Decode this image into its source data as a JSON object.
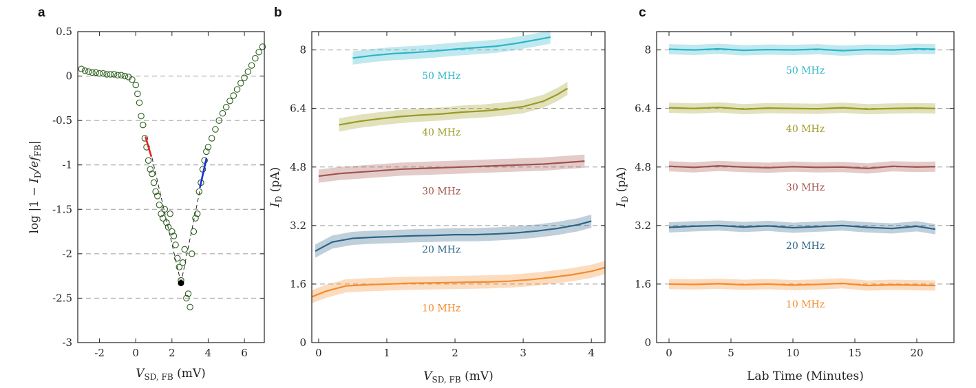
{
  "chart_data": [
    {
      "panel": "a",
      "type": "scatter",
      "xlabel": "V_SD, FB (mV)",
      "xlabel_main": "V",
      "xlabel_sub": "SD, FB",
      "xlabel_unit": " (mV)",
      "ylabel": "log |1 − I_D/e f_FB|",
      "ylabel_prefix": "log |1 − ",
      "ylabel_I": "I",
      "ylabel_Isub": "D",
      "ylabel_mid": "/e",
      "ylabel_f": "f",
      "ylabel_fsub": "FB",
      "ylabel_suffix": "|",
      "xlim": [
        -3.2,
        7.1
      ],
      "ylim": [
        -3.0,
        0.5
      ],
      "xticks": [
        -2,
        0,
        2,
        4,
        6
      ],
      "xtick_labels": [
        "-2",
        "0",
        "2",
        "4",
        "6"
      ],
      "yticks": [
        0.5,
        0,
        -0.5,
        -1,
        -1.5,
        -2,
        -2.5,
        -3
      ],
      "ytick_labels": [
        "0.5",
        "0",
        "-0.5",
        "-1",
        "-1.5",
        "-2",
        "-2.5",
        "-3"
      ],
      "ref_lines_y": [
        0,
        -0.5,
        -1,
        -1.5,
        -2,
        -2.5
      ],
      "marker_color": "#2e5e1e",
      "points_x": [
        -3.0,
        -2.8,
        -2.6,
        -2.4,
        -2.2,
        -2.0,
        -1.8,
        -1.6,
        -1.4,
        -1.2,
        -1.0,
        -0.8,
        -0.6,
        -0.4,
        -0.2,
        0.0,
        0.1,
        0.2,
        0.3,
        0.4,
        0.5,
        0.6,
        0.7,
        0.8,
        0.9,
        1.0,
        1.1,
        1.2,
        1.3,
        1.4,
        1.5,
        1.6,
        1.7,
        1.8,
        1.9,
        2.0,
        2.1,
        2.2,
        2.3,
        2.4,
        2.5,
        2.6,
        2.7,
        2.8,
        2.9,
        3.0,
        3.1,
        3.2,
        3.3,
        3.4,
        3.5,
        3.6,
        3.7,
        3.8,
        3.9,
        4.0,
        4.2,
        4.4,
        4.6,
        4.8,
        5.0,
        5.2,
        5.4,
        5.6,
        5.8,
        6.0,
        6.2,
        6.4,
        6.6,
        6.8,
        7.0
      ],
      "points_y": [
        0.08,
        0.06,
        0.05,
        0.04,
        0.04,
        0.03,
        0.03,
        0.02,
        0.02,
        0.02,
        0.01,
        0.01,
        0.0,
        -0.01,
        -0.04,
        -0.1,
        -0.2,
        -0.3,
        -0.45,
        -0.55,
        -0.7,
        -0.8,
        -0.95,
        -1.05,
        -1.1,
        -1.2,
        -1.3,
        -1.35,
        -1.45,
        -1.55,
        -1.6,
        -1.5,
        -1.65,
        -1.7,
        -1.55,
        -1.75,
        -1.8,
        -1.9,
        -2.05,
        -2.15,
        -2.3,
        -2.1,
        -1.95,
        -2.5,
        -2.45,
        -2.6,
        -2.0,
        -1.75,
        -1.6,
        -1.55,
        -1.3,
        -1.2,
        -1.05,
        -0.95,
        -0.85,
        -0.8,
        -0.7,
        -0.6,
        -0.5,
        -0.42,
        -0.35,
        -0.28,
        -0.22,
        -0.15,
        -0.08,
        -0.02,
        0.05,
        0.12,
        0.2,
        0.27,
        0.33
      ],
      "black_point": [
        2.5,
        -2.33
      ],
      "dashed_lines": [
        [
          [
            0.9,
            -0.92
          ],
          [
            2.5,
            -2.33
          ]
        ],
        [
          [
            2.5,
            -2.33
          ],
          [
            3.55,
            -1.28
          ]
        ]
      ],
      "red_fit": {
        "color": "#e8211d",
        "from": [
          0.55,
          -0.69
        ],
        "to": [
          0.85,
          -0.9
        ]
      },
      "blue_fit": {
        "color": "#1b2ee0",
        "from": [
          3.55,
          -1.25
        ],
        "to": [
          3.9,
          -0.93
        ]
      }
    },
    {
      "panel": "b",
      "type": "line",
      "xlabel": "V_SD, FB (mV)",
      "xlabel_main": "V",
      "xlabel_sub": "SD, FB",
      "xlabel_unit": " (mV)",
      "ylabel": "I_D (pA)",
      "ylabel_I": "I",
      "ylabel_Isub": "D",
      "ylabel_unit": " (pA)",
      "xlim": [
        -0.1,
        4.2
      ],
      "ylim": [
        0,
        8.5
      ],
      "xticks": [
        0,
        1,
        2,
        3,
        4
      ],
      "xtick_labels": [
        "0",
        "1",
        "2",
        "3",
        "4"
      ],
      "yticks": [
        0,
        1.6,
        3.2,
        4.8,
        6.4,
        8
      ],
      "ytick_labels": [
        "0",
        "1.6",
        "3.2",
        "4.8",
        "6.4",
        "8"
      ],
      "ref_lines_y": [
        1.6,
        3.2,
        4.8,
        6.4,
        8
      ],
      "band_half_width": 0.18,
      "series": [
        {
          "name": "50 MHz",
          "color": "#2bb5c9",
          "label_at": [
            1.8,
            7.3
          ],
          "x": [
            0.5,
            0.8,
            1.1,
            1.4,
            1.7,
            2.0,
            2.3,
            2.6,
            2.9,
            3.2,
            3.4
          ],
          "y": [
            7.78,
            7.85,
            7.9,
            7.93,
            7.97,
            8.02,
            8.06,
            8.1,
            8.18,
            8.28,
            8.35
          ]
        },
        {
          "name": "40 MHz",
          "color": "#9a9a22",
          "label_at": [
            1.8,
            5.75
          ],
          "x": [
            0.3,
            0.6,
            0.9,
            1.2,
            1.5,
            1.8,
            2.1,
            2.4,
            2.7,
            3.0,
            3.3,
            3.5,
            3.65
          ],
          "y": [
            5.95,
            6.05,
            6.12,
            6.18,
            6.22,
            6.25,
            6.3,
            6.33,
            6.38,
            6.45,
            6.6,
            6.78,
            6.95
          ]
        },
        {
          "name": "30 MHz",
          "color": "#a2524c",
          "label_at": [
            1.8,
            4.15
          ],
          "x": [
            0.0,
            0.3,
            0.6,
            0.9,
            1.2,
            1.5,
            1.8,
            2.1,
            2.4,
            2.7,
            3.0,
            3.3,
            3.6,
            3.9
          ],
          "y": [
            4.55,
            4.62,
            4.66,
            4.7,
            4.74,
            4.76,
            4.78,
            4.8,
            4.82,
            4.84,
            4.86,
            4.88,
            4.92,
            4.96
          ]
        },
        {
          "name": "20 MHz",
          "color": "#2a6487",
          "label_at": [
            1.8,
            2.55
          ],
          "x": [
            -0.05,
            0.2,
            0.5,
            0.8,
            1.1,
            1.4,
            1.7,
            2.0,
            2.3,
            2.6,
            2.9,
            3.2,
            3.5,
            3.8,
            4.0
          ],
          "y": [
            2.5,
            2.75,
            2.85,
            2.88,
            2.9,
            2.92,
            2.93,
            2.95,
            2.95,
            2.97,
            3.0,
            3.05,
            3.12,
            3.22,
            3.32
          ]
        },
        {
          "name": "10 MHz",
          "color": "#f58a2a",
          "label_at": [
            1.8,
            0.95
          ],
          "x": [
            -0.1,
            0.1,
            0.4,
            0.7,
            1.0,
            1.3,
            1.6,
            1.9,
            2.2,
            2.5,
            2.8,
            3.1,
            3.4,
            3.7,
            4.0,
            4.2
          ],
          "y": [
            1.25,
            1.4,
            1.55,
            1.58,
            1.6,
            1.62,
            1.63,
            1.64,
            1.65,
            1.66,
            1.68,
            1.72,
            1.78,
            1.85,
            1.95,
            2.05
          ]
        }
      ]
    },
    {
      "panel": "c",
      "type": "line",
      "xlabel": "Lab Time (Minutes)",
      "ylabel": "I_D (pA)",
      "ylabel_I": "I",
      "ylabel_Isub": "D",
      "ylabel_unit": " (pA)",
      "xlim": [
        -1,
        23
      ],
      "ylim": [
        0,
        8.5
      ],
      "xticks": [
        0,
        5,
        10,
        15,
        20
      ],
      "xtick_labels": [
        "0",
        "5",
        "10",
        "15",
        "20"
      ],
      "yticks": [
        0,
        1.6,
        3.2,
        4.8,
        6.4,
        8
      ],
      "ytick_labels": [
        "0",
        "1.6",
        "3.2",
        "4.8",
        "6.4",
        "8"
      ],
      "ref_lines_y": [
        1.6,
        3.2,
        4.8,
        6.4,
        8
      ],
      "band_half_width": 0.14,
      "series": [
        {
          "name": "50 MHz",
          "color": "#2bb5c9",
          "label_at": [
            11,
            7.45
          ],
          "x": [
            0,
            2,
            4,
            6,
            8,
            10,
            12,
            14,
            16,
            18,
            20,
            21.5
          ],
          "y": [
            8.02,
            8.0,
            8.03,
            7.99,
            8.01,
            8.0,
            8.02,
            7.98,
            8.01,
            8.0,
            8.03,
            8.02
          ]
        },
        {
          "name": "40 MHz",
          "color": "#9a9a22",
          "label_at": [
            11,
            5.85
          ],
          "x": [
            0,
            2,
            4,
            6,
            8,
            10,
            12,
            14,
            16,
            18,
            20,
            21.5
          ],
          "y": [
            6.42,
            6.4,
            6.43,
            6.38,
            6.41,
            6.4,
            6.39,
            6.42,
            6.38,
            6.4,
            6.41,
            6.4
          ]
        },
        {
          "name": "30 MHz",
          "color": "#a2524c",
          "label_at": [
            11,
            4.25
          ],
          "x": [
            0,
            2,
            4,
            6,
            8,
            10,
            12,
            14,
            16,
            18,
            20,
            21.5
          ],
          "y": [
            4.82,
            4.79,
            4.83,
            4.8,
            4.78,
            4.81,
            4.79,
            4.8,
            4.76,
            4.82,
            4.8,
            4.81
          ]
        },
        {
          "name": "20 MHz",
          "color": "#2a6487",
          "label_at": [
            11,
            2.65
          ],
          "x": [
            0,
            2,
            4,
            6,
            8,
            10,
            12,
            14,
            16,
            18,
            20,
            21.5
          ],
          "y": [
            3.15,
            3.18,
            3.2,
            3.16,
            3.19,
            3.14,
            3.17,
            3.2,
            3.15,
            3.12,
            3.18,
            3.1
          ]
        },
        {
          "name": "10 MHz",
          "color": "#f58a2a",
          "label_at": [
            11,
            1.05
          ],
          "x": [
            0,
            2,
            4,
            6,
            8,
            10,
            12,
            14,
            16,
            18,
            20,
            21.5
          ],
          "y": [
            1.6,
            1.59,
            1.61,
            1.58,
            1.6,
            1.57,
            1.59,
            1.62,
            1.56,
            1.58,
            1.57,
            1.56
          ]
        }
      ]
    }
  ]
}
